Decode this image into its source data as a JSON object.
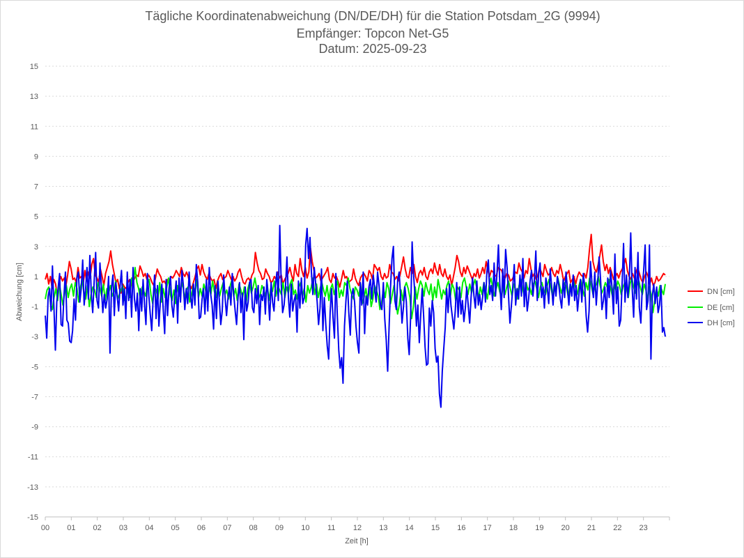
{
  "chart_data": {
    "type": "line",
    "title": "Tägliche Koordinatenabweichung (DN/DE/DH) für die Station Potsdam_2G (9994)",
    "subtitle1": "Empfänger: Topcon Net-G5",
    "subtitle2": "Datum: 2025-09-23",
    "xlabel": "Zeit [h]",
    "ylabel": "Abweichung [cm]",
    "ylim": [
      -15,
      15
    ],
    "yticks": [
      "15",
      "13",
      "11",
      "9",
      "7",
      "5",
      "3",
      "1",
      "-1",
      "-3",
      "-5",
      "-7",
      "-9",
      "-11",
      "-13",
      "-15"
    ],
    "xlim": [
      0,
      24
    ],
    "xticks": [
      "00",
      "01",
      "02",
      "03",
      "04",
      "05",
      "06",
      "07",
      "08",
      "09",
      "10",
      "11",
      "12",
      "13",
      "14",
      "15",
      "16",
      "17",
      "18",
      "19",
      "20",
      "21",
      "22",
      "23"
    ],
    "grid": true,
    "legend_position": "right",
    "series": [
      {
        "name": "DN [cm]",
        "color": "#ff0000",
        "values": [
          0.8,
          1.2,
          0.5,
          1.0,
          0.2,
          0.8,
          0.5,
          -0.3,
          0.6,
          1.0,
          0.7,
          0.9,
          0.4,
          1.1,
          2.0,
          1.5,
          0.8,
          0.9,
          0.6,
          1.6,
          0.9,
          1.0,
          0.5,
          1.4,
          0.7,
          1.3,
          0.9,
          1.8,
          2.2,
          1.1,
          0.9,
          0.6,
          1.5,
          1.0,
          0.4,
          1.2,
          1.6,
          2.0,
          2.7,
          1.8,
          1.2,
          0.6,
          0.8,
          0.2,
          -0.1,
          0.5,
          0.3,
          0.2,
          0.6,
          0.8,
          0.4,
          0.7,
          0.9,
          1.1,
          1.0,
          1.7,
          1.4,
          1.0,
          1.2,
          0.8,
          1.1,
          0.9,
          0.6,
          0.4,
          0.9,
          1.5,
          1.2,
          1.0,
          0.6,
          0.7,
          0.5,
          0.8,
          0.7,
          1.0,
          0.9,
          1.1,
          1.4,
          1.2,
          1.0,
          1.6,
          1.2,
          1.0,
          1.3,
          1.0,
          0.4,
          0.2,
          0.6,
          1.0,
          1.5,
          1.7,
          1.1,
          1.8,
          1.3,
          1.0,
          0.8,
          1.2,
          0.9,
          0.7,
          0.8,
          0.2,
          0.7,
          1.0,
          1.2,
          0.8,
          0.9,
          1.0,
          1.4,
          1.1,
          0.8,
          1.0,
          0.7,
          0.9,
          1.3,
          1.5,
          1.0,
          0.6,
          0.5,
          0.8,
          0.9,
          0.7,
          1.1,
          1.3,
          2.6,
          1.9,
          1.4,
          1.2,
          0.8,
          0.9,
          1.5,
          1.2,
          1.0,
          0.6,
          0.7,
          1.0,
          0.8,
          1.3,
          0.9,
          1.1,
          0.5,
          0.8,
          1.0,
          1.2,
          1.6,
          1.1,
          0.7,
          1.8,
          1.2,
          1.0,
          2.2,
          1.4,
          1.0,
          1.6,
          0.9,
          1.3,
          2.9,
          2.0,
          1.4,
          0.9,
          1.0,
          1.2,
          0.7,
          0.9,
          1.1,
          1.3,
          1.6,
          0.8,
          0.6,
          1.2,
          0.9,
          1.0,
          0.7,
          0.3,
          0.8,
          1.4,
          0.9,
          1.0,
          0.6,
          0.7,
          0.8,
          1.5,
          0.9,
          0.6,
          0.4,
          0.9,
          1.1,
          1.2,
          1.0,
          0.7,
          1.4,
          1.2,
          0.8,
          1.8,
          1.6,
          1.4,
          1.6,
          1.0,
          0.8,
          1.2,
          0.9,
          1.0,
          1.8,
          1.3,
          1.2,
          0.8,
          1.0,
          0.7,
          1.1,
          1.7,
          2.3,
          1.5,
          1.0,
          0.9,
          1.6,
          1.2,
          1.8,
          1.0,
          0.6,
          1.2,
          1.4,
          1.1,
          1.6,
          1.0,
          0.8,
          1.3,
          1.5,
          1.2,
          1.9,
          1.4,
          1.1,
          1.8,
          1.2,
          1.0,
          1.5,
          1.0,
          0.8,
          1.1,
          0.4,
          1.0,
          1.6,
          2.4,
          2.0,
          1.3,
          1.0,
          1.6,
          1.2,
          1.7,
          1.4,
          1.1,
          0.8,
          1.2,
          1.0,
          1.5,
          0.9,
          1.2,
          1.6,
          1.2,
          2.0,
          1.4,
          1.0,
          1.4,
          1.3,
          1.0,
          1.1,
          1.6,
          1.5,
          1.4,
          1.0,
          0.9,
          1.2,
          1.1,
          0.7,
          0.8,
          1.0,
          1.3,
          1.2,
          1.9,
          1.5,
          1.3,
          0.9,
          1.4,
          1.2,
          2.2,
          1.5,
          1.0,
          1.2,
          0.8,
          1.1,
          1.6,
          1.3,
          1.0,
          1.8,
          1.4,
          1.1,
          1.2,
          1.6,
          1.2,
          1.0,
          1.4,
          1.2,
          1.8,
          1.3,
          0.7,
          1.0,
          1.2,
          1.4,
          0.6,
          0.8,
          1.0,
          0.5,
          1.0,
          1.3,
          1.1,
          1.0,
          1.2,
          0.9,
          1.6,
          2.8,
          3.8,
          2.0,
          1.5,
          1.3,
          1.8,
          2.4,
          3.1,
          2.0,
          1.4,
          1.8,
          1.2,
          1.6,
          1.2,
          0.8,
          1.0,
          1.2,
          0.9,
          1.3,
          1.5,
          1.8,
          2.2,
          1.4,
          1.0,
          0.8,
          1.2,
          0.9,
          1.3,
          1.6,
          1.2,
          0.8,
          0.6,
          1.0,
          1.3,
          1.0,
          0.5,
          0.9,
          0.4,
          0.6,
          1.0,
          0.7,
          0.8,
          1.0,
          1.2,
          1.1
        ]
      },
      {
        "name": "DE [cm]",
        "color": "#00ee00",
        "values": [
          -0.5,
          0.1,
          0.3,
          -0.8,
          -1.2,
          -0.4,
          0.2,
          -0.6,
          0.5,
          -0.2,
          -0.9,
          -0.1,
          0.4,
          -0.4,
          0.2,
          0.5,
          -0.3,
          0.6,
          0.2,
          -0.7,
          0.3,
          0.8,
          -0.2,
          -0.5,
          0.4,
          -1.0,
          -0.2,
          0.3,
          0.1,
          -0.4,
          0.6,
          0.2,
          -0.3,
          0.5,
          -0.6,
          0.2,
          -0.1,
          0.4,
          -0.3,
          0.0,
          0.7,
          -0.5,
          -0.2,
          0.1,
          0.4,
          -0.6,
          -0.3,
          0.2,
          -0.4,
          0.9,
          0.5,
          1.6,
          0.6,
          0.2,
          -0.5,
          0.3,
          0.0,
          -0.3,
          0.5,
          0.8,
          -0.2,
          -0.8,
          0.3,
          0.1,
          -0.5,
          0.6,
          -0.7,
          0.2,
          -0.4,
          0.3,
          0.9,
          -0.2,
          -0.6,
          0.1,
          -0.8,
          0.4,
          -0.3,
          0.2,
          0.6,
          -0.5,
          0.1,
          0.3,
          -0.7,
          -0.2,
          0.4,
          -0.1,
          0.8,
          -0.4,
          0.2,
          -0.3,
          0.5,
          0.1,
          -0.6,
          0.3,
          -0.2,
          0.7,
          0.0,
          -0.4,
          0.5,
          -0.3,
          0.2,
          0.6,
          -0.2,
          0.1,
          -0.5,
          0.4,
          0.8,
          -0.3,
          0.2,
          -0.6,
          0.5,
          0.1,
          -0.4,
          0.3,
          -0.8,
          0.2,
          0.6,
          -0.1,
          0.3,
          0.9,
          0.2,
          -0.5,
          -0.2,
          0.4,
          0.1,
          -0.3,
          0.5,
          -0.6,
          0.2,
          0.0,
          0.7,
          -0.3,
          0.4,
          0.1,
          -0.2,
          0.6,
          -0.4,
          0.3,
          -0.1,
          0.5,
          0.8,
          -0.2,
          0.1,
          -0.5,
          0.3,
          0.6,
          -0.3,
          0.2,
          -0.7,
          0.4,
          -0.1,
          0.3,
          0.9,
          -0.2,
          0.5,
          -0.4,
          0.2,
          0.6,
          0.1,
          -0.3,
          0.4,
          -0.6,
          0.2,
          0.5,
          -0.2,
          0.3,
          0.7,
          -0.4,
          0.1,
          -0.3,
          0.6,
          0.4,
          0.9,
          0.2,
          -0.2,
          -0.5,
          0.3,
          0.1,
          -0.3,
          0.5,
          -0.8,
          -0.4,
          0.2,
          -0.6,
          0.3,
          -1.0,
          -0.5,
          0.4,
          0.1,
          -0.3,
          -1.2,
          -0.7,
          0.2,
          -0.4,
          0.6,
          0.2,
          -0.8,
          -0.2,
          0.4,
          -0.5,
          -1.5,
          -0.9,
          0.1,
          -0.6,
          0.3,
          0.6,
          0.2,
          -0.4,
          -1.8,
          -1.0,
          0.3,
          -0.5,
          0.2,
          0.7,
          0.4,
          -0.3,
          0.6,
          0.1,
          -0.2,
          0.5,
          -0.6,
          0.3,
          -0.4,
          0.8,
          0.2,
          -0.5,
          0.1,
          -0.2,
          0.4,
          0.7,
          -0.3,
          0.5,
          0.2,
          -0.6,
          0.3,
          0.1,
          -0.4,
          0.6,
          0.9,
          0.3,
          -0.2,
          0.5,
          -0.1,
          0.4,
          0.8,
          0.2,
          -0.4,
          0.3,
          -0.2,
          0.6,
          0.1,
          -0.5,
          0.4,
          0.9,
          0.3,
          -0.3,
          0.2,
          0.6,
          0.0,
          -0.4,
          0.5,
          -0.2,
          0.3,
          0.7,
          0.2,
          -0.3,
          0.5,
          0.1,
          -0.5,
          0.4,
          0.8,
          0.2,
          -0.3,
          0.6,
          0.1,
          0.3,
          -0.2,
          0.5,
          0.7,
          0.2,
          -0.4,
          0.3,
          0.6,
          0.1,
          -0.2,
          0.4,
          0.8,
          0.3,
          -0.3,
          0.5,
          0.2,
          0.9,
          0.4,
          -0.1,
          0.3,
          0.6,
          0.2,
          -0.4,
          0.5,
          0.1,
          0.7,
          0.3,
          -0.2,
          0.4,
          0.8,
          0.2,
          -0.3,
          0.6,
          0.1,
          0.9,
          0.4,
          -0.2,
          0.3,
          0.5,
          1.0,
          0.4,
          -0.1,
          0.2,
          0.6,
          0.3,
          0.8,
          0.2,
          -0.3,
          0.5,
          0.1,
          0.7,
          0.4,
          -0.2,
          0.3,
          0.6,
          0.2,
          -0.4,
          0.5,
          0.9,
          0.3,
          -0.1,
          0.4,
          0.7,
          0.2,
          -0.2,
          0.5,
          0.1,
          -0.6,
          0.3,
          -0.2,
          -1.4,
          -0.6,
          0.2,
          -0.3,
          0.4,
          0.1,
          -0.2,
          0.5
        ]
      },
      {
        "name": "DH [cm]",
        "color": "#0000ee",
        "values": [
          -1.6,
          -3.1,
          -0.3,
          0.2,
          -1.3,
          1.7,
          -1.0,
          -3.9,
          -0.7,
          0.3,
          1.2,
          -2.2,
          -2.3,
          -0.3,
          1.3,
          -1.9,
          -2.1,
          -3.3,
          -3.4,
          -2.6,
          -0.5,
          -1.9,
          0.9,
          1.3,
          -0.7,
          0.2,
          2.1,
          -0.9,
          0.1,
          1.6,
          -0.5,
          2.4,
          -0.2,
          -1.4,
          0.7,
          2.6,
          -0.6,
          -1.1,
          1.9,
          0.3,
          -1.4,
          -0.2,
          -1.1,
          -0.5,
          1.0,
          -4.1,
          0.2,
          1.1,
          -1.6,
          0.6,
          -0.3,
          -1.3,
          0.4,
          1.4,
          -0.9,
          0.2,
          -1.8,
          1.3,
          -0.6,
          0.8,
          -1.7,
          1.6,
          -0.5,
          -1.3,
          -0.1,
          -2.6,
          0.2,
          -1.3,
          0.8,
          -0.9,
          -2.2,
          1.2,
          -0.3,
          -1.5,
          -2.6,
          -0.4,
          1.1,
          -1.8,
          0.4,
          -2.3,
          -0.6,
          0.5,
          -1.2,
          -2.8,
          0.8,
          -1.6,
          0.2,
          1.0,
          -0.9,
          -1.7,
          -0.3,
          0.7,
          -2.1,
          0.9,
          -0.7,
          1.4,
          0.4,
          -1.2,
          0.2,
          -0.8,
          1.3,
          -0.3,
          -1.1,
          0.5,
          -0.9,
          1.8,
          0.6,
          -1.8,
          -1.7,
          -0.5,
          0.2,
          -1.5,
          0.8,
          -1.3,
          1.6,
          -0.2,
          -0.9,
          -2.5,
          0.4,
          -1.8,
          0.7,
          -0.6,
          -2.2,
          -1.3,
          1.1,
          -0.4,
          -1.6,
          -0.4,
          0.3,
          -0.9,
          1.2,
          -0.2,
          -1.3,
          -2.2,
          -0.4,
          0.6,
          -1.4,
          -0.1,
          -3.2,
          0.3,
          -1.3,
          -0.7,
          0.6,
          0.8,
          -1.1,
          -1.4,
          0.2,
          -0.8,
          0.4,
          -2.2,
          -0.2,
          -0.6,
          0.3,
          -1.5,
          0.8,
          -0.4,
          -1.9,
          0.6,
          -0.7,
          -1.3,
          0.4,
          1.3,
          -0.6,
          4.4,
          0.5,
          -1.4,
          -0.9,
          0.3,
          2.3,
          -0.4,
          -1.7,
          0.5,
          -1.3,
          -0.6,
          -0.2,
          -2.7,
          0.7,
          -1.1,
          0.9,
          -0.8,
          -0.4,
          3.1,
          4.2,
          2.2,
          3.6,
          1.3,
          -0.2,
          1.6,
          0.5,
          -0.7,
          -2.2,
          -1.1,
          1.5,
          -2.6,
          -0.4,
          -2.2,
          -3.6,
          -4.5,
          -1.4,
          0.2,
          -1.7,
          -3.1,
          1.2,
          -1.6,
          -3.9,
          -5.1,
          -4.4,
          -6.1,
          -2.3,
          -0.6,
          0.7,
          -1.4,
          -2.9,
          -0.3,
          0.2,
          -0.7,
          -2.3,
          -3.4,
          -4.1,
          0.6,
          -0.9,
          1.3,
          -2.8,
          -0.3,
          -0.9,
          0.3,
          0.8,
          -0.5,
          1.1,
          0.2,
          -0.7,
          1.3,
          0.4,
          -0.9,
          -1.2,
          0.6,
          -1.8,
          -3.2,
          -5.3,
          -2.4,
          0.3,
          2.2,
          3.0,
          -0.6,
          -1.2,
          0.8,
          1.3,
          -0.3,
          -2.1,
          -1.0,
          0.3,
          -0.7,
          -3.1,
          -4.2,
          -1.6,
          3.3,
          1.2,
          -0.3,
          -2.3,
          -0.9,
          -3.4,
          -1.5,
          0.2,
          -1.6,
          -3.7,
          -4.9,
          -4.8,
          -1.1,
          -2.3,
          -0.6,
          -1.4,
          -3.8,
          -4.7,
          -4.3,
          -6.8,
          -7.7,
          -5.3,
          -3.8,
          -2.4,
          0.2,
          -1.4,
          0.5,
          -0.9,
          -1.7,
          -2.5,
          -1.3,
          0.6,
          -1.7,
          0.3,
          -1.5,
          -0.6,
          -2.0,
          -1.1,
          0.3,
          -0.9,
          -2.1,
          -0.4,
          0.9,
          -0.3,
          -1.1,
          0.7,
          -0.9,
          -0.2,
          -1.2,
          -0.4,
          0.6,
          -0.7,
          1.3,
          2.1,
          -0.2,
          0.4,
          -0.6,
          1.9,
          -0.3,
          1.2,
          3.1,
          0.5,
          -1.2,
          1.5,
          -0.4,
          2.8,
          1.6,
          -0.2,
          -2.1,
          -1.0,
          0.3,
          1.8,
          -0.9,
          0.2,
          -0.5,
          1.1,
          -0.3,
          2.2,
          -1.0,
          0.6,
          -1.3,
          -0.5,
          0.7,
          1.4,
          -0.3,
          0.8,
          2.7,
          -0.6,
          1.2,
          1.9,
          -0.4,
          0.3,
          -1.1,
          0.9,
          0.2,
          -0.8,
          1.5,
          0.3,
          -0.9,
          0.6,
          -0.3,
          1.0,
          0.4,
          -0.5,
          -1.1,
          0.8,
          -0.4,
          1.3,
          0.2,
          -0.9,
          0.5,
          -0.3,
          1.1,
          -0.6,
          0.4,
          -1.3,
          -0.2,
          0.8,
          -0.7,
          1.2,
          0.3,
          -1.6,
          -2.7,
          -1.3,
          2.0,
          0.6,
          -0.4,
          1.3,
          -0.9,
          0.5,
          2.3,
          0.8,
          -1.2,
          -0.6,
          0.3,
          -1.8,
          0.9,
          -0.4,
          1.4,
          0.2,
          -1.5,
          2.5,
          -0.8,
          0.3,
          -2.3,
          -1.9,
          0.6,
          3.2,
          -0.7,
          1.1,
          -0.4,
          0.8,
          3.9,
          0.2,
          -1.7,
          1.6,
          -0.5,
          2.6,
          -1.1,
          -2.1,
          0.3,
          1.4,
          3.1,
          -1.2,
          -0.6,
          3.1,
          -4.5,
          -0.3,
          0.5,
          -0.8,
          0.3,
          -1.4,
          -0.9,
          0.4,
          -2.7,
          -2.4,
          -3.0
        ]
      }
    ]
  }
}
